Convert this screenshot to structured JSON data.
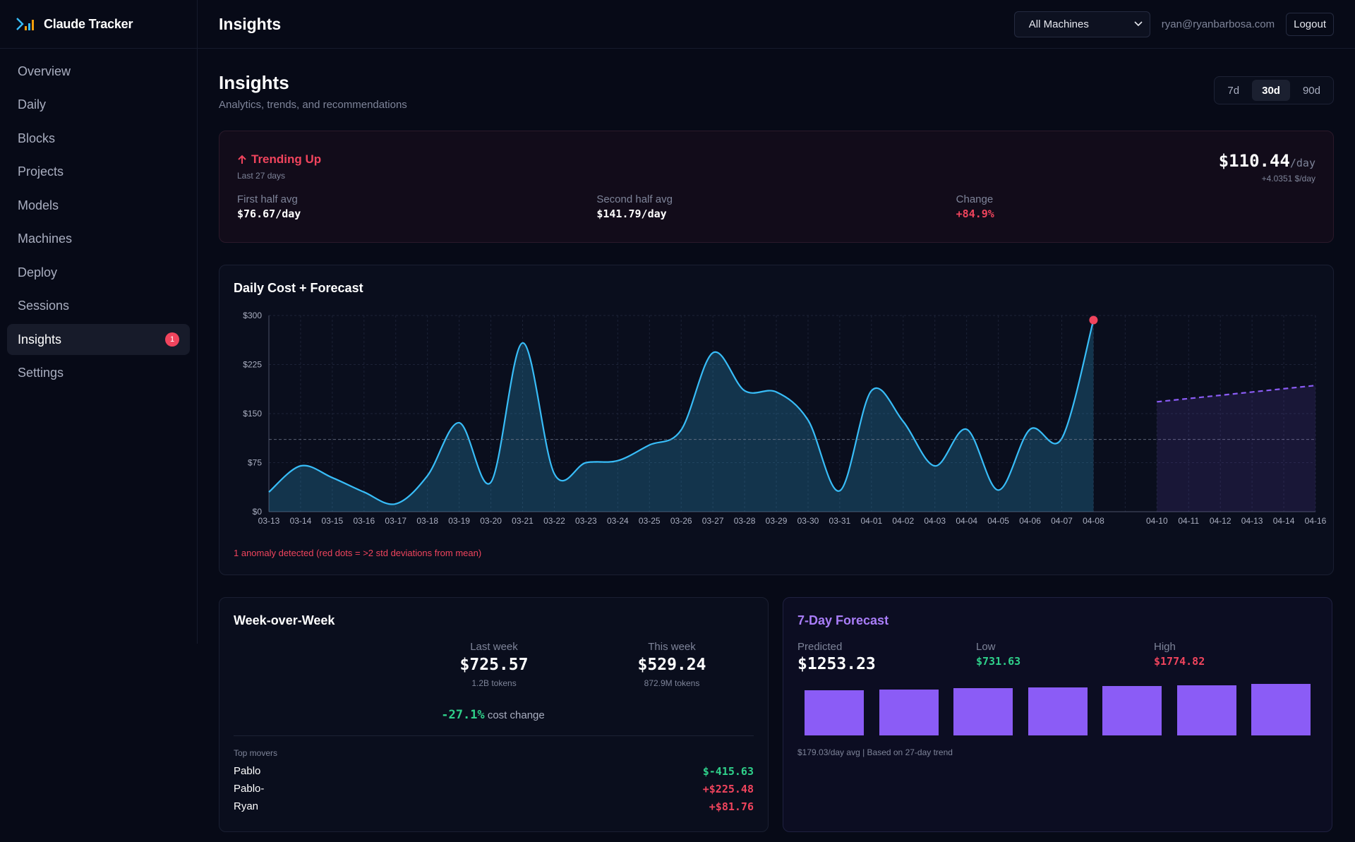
{
  "app": {
    "name": "Claude Tracker"
  },
  "sidebar": {
    "items": [
      {
        "label": "Overview"
      },
      {
        "label": "Daily"
      },
      {
        "label": "Blocks"
      },
      {
        "label": "Projects"
      },
      {
        "label": "Models"
      },
      {
        "label": "Machines"
      },
      {
        "label": "Deploy"
      },
      {
        "label": "Sessions"
      },
      {
        "label": "Insights",
        "active": true,
        "badge": "1"
      },
      {
        "label": "Settings"
      }
    ]
  },
  "header": {
    "title": "Insights",
    "machine_select": "All Machines",
    "user_email": "ryan@ryanbarbosa.com",
    "logout_label": "Logout"
  },
  "page": {
    "title": "Insights",
    "subtitle": "Analytics, trends, and recommendations",
    "ranges": [
      "7d",
      "30d",
      "90d"
    ],
    "active_range": "30d"
  },
  "trend": {
    "title": "Trending Up",
    "period": "Last 27 days",
    "value": "$110.44",
    "unit": "/day",
    "slope": "+4.0351 $/day",
    "stats": [
      {
        "label": "First half avg",
        "value": "$76.67/day"
      },
      {
        "label": "Second half avg",
        "value": "$141.79/day"
      },
      {
        "label": "Change",
        "value": "+84.9%"
      }
    ]
  },
  "chart_data": {
    "type": "area",
    "title": "Daily Cost + Forecast",
    "x": [
      "03-13",
      "03-14",
      "03-15",
      "03-16",
      "03-17",
      "03-18",
      "03-19",
      "03-20",
      "03-21",
      "03-22",
      "03-23",
      "03-24",
      "03-25",
      "03-26",
      "03-27",
      "03-28",
      "03-29",
      "03-30",
      "03-31",
      "04-01",
      "04-02",
      "04-03",
      "04-04",
      "04-05",
      "04-06",
      "04-07",
      "04-08"
    ],
    "forecast_x": [
      "04-10",
      "04-11",
      "04-12",
      "04-13",
      "04-14",
      "04-16"
    ],
    "series": [
      {
        "values": [
          30,
          70,
          52,
          30,
          12,
          55,
          136,
          45,
          258,
          58,
          75,
          78,
          102,
          125,
          243,
          185,
          183,
          140,
          32,
          185,
          138,
          70,
          126,
          33,
          126,
          112,
          293
        ]
      }
    ],
    "forecast": {
      "start": 168,
      "end": 193
    },
    "mean": 110.44,
    "anomalies": [
      {
        "x": "04-08",
        "value": 293
      }
    ],
    "ylim": [
      0,
      300
    ],
    "yticks": [
      "$0",
      "$75",
      "$150",
      "$225",
      "$300"
    ],
    "grid": true,
    "note": "1 anomaly detected (red dots = >2 std deviations from mean)"
  },
  "wow": {
    "title": "Week-over-Week",
    "last_week": {
      "label": "Last week",
      "value": "$725.57",
      "tokens": "1.2B tokens"
    },
    "this_week": {
      "label": "This week",
      "value": "$529.24",
      "tokens": "872.9M tokens"
    },
    "change_pct": "-27.1%",
    "change_label": "cost change",
    "movers_title": "Top movers",
    "movers": [
      {
        "name": "Pablo",
        "delta": "$-415.63",
        "dir": "down"
      },
      {
        "name": "Pablo-",
        "delta": "+$225.48",
        "dir": "up"
      },
      {
        "name": "Ryan",
        "delta": "+$81.76",
        "dir": "up"
      }
    ]
  },
  "forecast": {
    "title": "7-Day Forecast",
    "predicted_label": "Predicted",
    "predicted": "$1253.23",
    "low_label": "Low",
    "low": "$731.63",
    "high_label": "High",
    "high": "$1774.82",
    "bars": [
      170,
      174,
      178,
      182,
      186,
      190,
      194
    ],
    "note": "$179.03/day avg | Based on 27-day trend"
  },
  "colors": {
    "accent": "#38bdf8",
    "forecast": "#8b5cf6",
    "danger": "#f0445d",
    "success": "#2fd08a"
  }
}
